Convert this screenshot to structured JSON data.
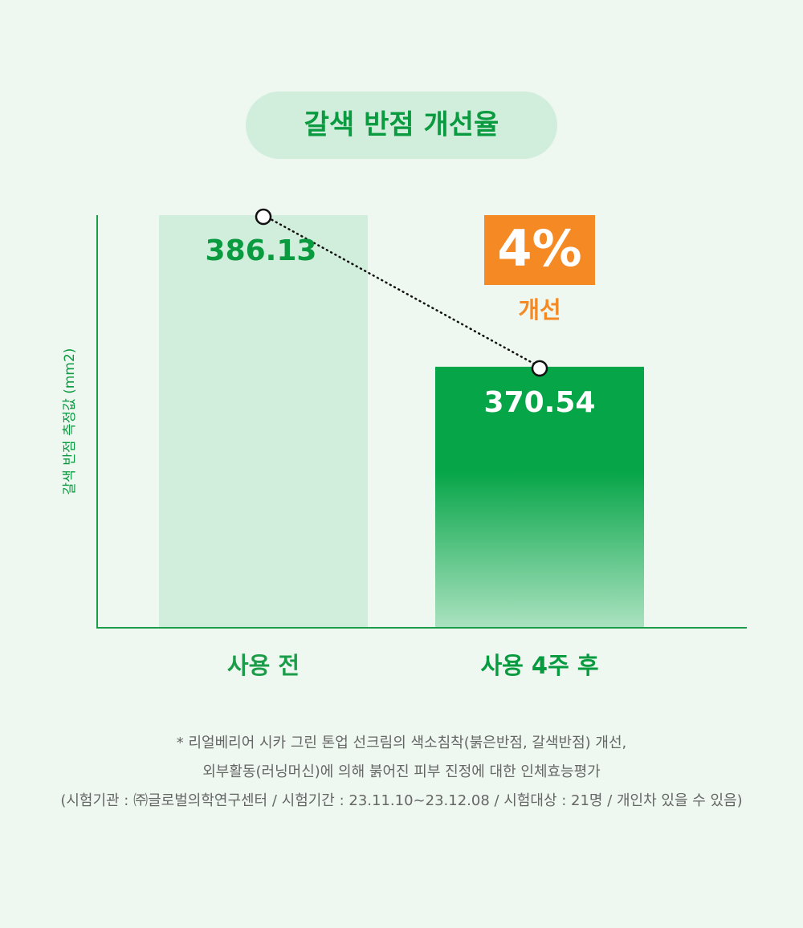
{
  "chart_data": {
    "type": "bar",
    "title": "갈색 반점 개선율",
    "y_label": "갈색 반점 측정값 (mm2)",
    "categories": [
      "사용 전",
      "사용 4주 후"
    ],
    "values": [
      386.13,
      370.54
    ],
    "colors": [
      "#d1eddc",
      "#06a548"
    ],
    "ylim": [
      343.7,
      386.13
    ],
    "annotation": {
      "badge": "4%",
      "text": "개선",
      "color": "#f58a25"
    },
    "footnotes": [
      "* 리얼베리어 시카 그린 톤업 선크림의 색소침착(붉은반점, 갈색반점) 개선,",
      "외부활동(러닝머신)에 의해 붉어진 피부 진정에 대한 인체효능평가",
      "(시험기관 : ㈜글로벌의학연구센터 / 시험기간 : 23.11.10~23.12.08 / 시험대상 : 21명 / 개인차 있을 수 있음)"
    ]
  }
}
